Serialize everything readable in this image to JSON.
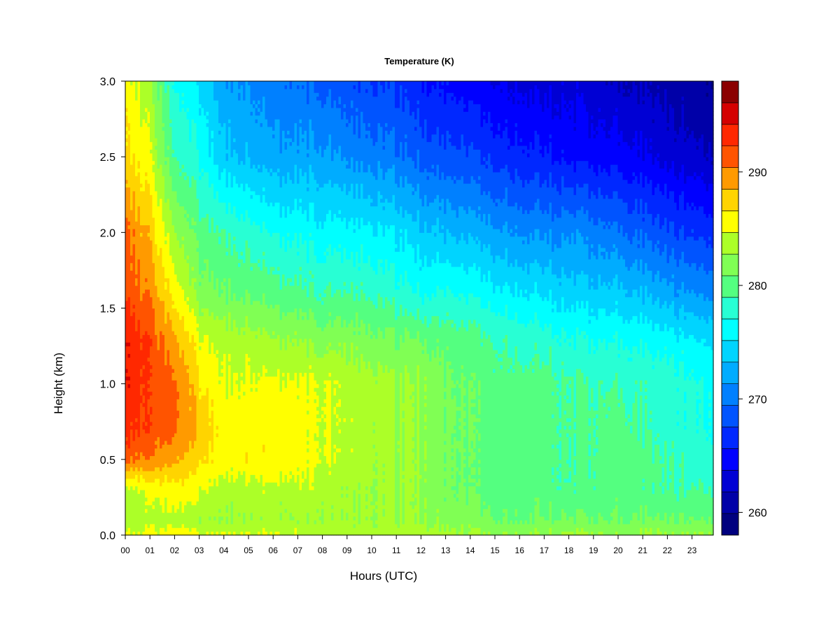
{
  "chart_data": {
    "type": "heatmap",
    "title": "Temperature (K)",
    "xlabel": "Hours (UTC)",
    "ylabel": "Height (km)",
    "x": {
      "range": [
        0,
        23.9
      ],
      "unit": "hour",
      "ticks": [
        0,
        1,
        2,
        3,
        4,
        5,
        6,
        7,
        8,
        9,
        10,
        11,
        12,
        13,
        14,
        15,
        16,
        17,
        18,
        19,
        20,
        21,
        22,
        23
      ],
      "tick_labels": [
        "00",
        "01",
        "02",
        "03",
        "04",
        "05",
        "06",
        "07",
        "08",
        "09",
        "10",
        "11",
        "12",
        "13",
        "14",
        "15",
        "16",
        "17",
        "18",
        "19",
        "20",
        "21",
        "22",
        "23"
      ]
    },
    "y": {
      "range": [
        0,
        3.0
      ],
      "unit": "km",
      "ticks": [
        0,
        0.5,
        1.0,
        1.5,
        2.0,
        2.5,
        3.0
      ],
      "tick_labels": [
        "0.0",
        "0.5",
        "1.0",
        "1.5",
        "2.0",
        "2.5",
        "3.0"
      ]
    },
    "colorbar": {
      "range": [
        258,
        298
      ],
      "levels": [
        258,
        260,
        262,
        264,
        266,
        268,
        270,
        272,
        274,
        276,
        278,
        280,
        282,
        284,
        286,
        288,
        290,
        292,
        294,
        296,
        298
      ],
      "colors": [
        "#00007f",
        "#0000a8",
        "#0000d4",
        "#0000ff",
        "#0028ff",
        "#0054ff",
        "#0080ff",
        "#00acff",
        "#00d4ff",
        "#00ffff",
        "#28ffd4",
        "#54ff80",
        "#80ff54",
        "#acff28",
        "#ffff00",
        "#ffd400",
        "#ff9a00",
        "#ff5400",
        "#ff2800",
        "#d40000",
        "#8b0000"
      ],
      "ticks": [
        260,
        270,
        280,
        290
      ],
      "tick_labels": [
        "260",
        "270",
        "280",
        "290"
      ]
    },
    "heights": [
      0,
      0.1,
      0.3,
      0.5,
      0.7,
      1.0,
      1.3,
      1.6,
      2.0,
      2.5,
      3.0
    ],
    "profiles": [
      {
        "hour": 0,
        "values": [
          285,
          283,
          284,
          291,
          293,
          294,
          294,
          292,
          291,
          287,
          286
        ]
      },
      {
        "hour": 1,
        "values": [
          285,
          284,
          285,
          290,
          292,
          292,
          292,
          290,
          288,
          285,
          283
        ]
      },
      {
        "hour": 2,
        "values": [
          286,
          284,
          286,
          289,
          291,
          291,
          289,
          286,
          283,
          279,
          277
        ]
      },
      {
        "hour": 3,
        "values": [
          285,
          283,
          285,
          287,
          288,
          287,
          285,
          282,
          280,
          277,
          275
        ]
      },
      {
        "hour": 4,
        "values": [
          285,
          283,
          284,
          286,
          286,
          285,
          284,
          281,
          279,
          274,
          272
        ]
      },
      {
        "hour": 6,
        "values": [
          285,
          283,
          284,
          286,
          286,
          285,
          283,
          280,
          277,
          272,
          270
        ]
      },
      {
        "hour": 8,
        "values": [
          284,
          283,
          284,
          285,
          285,
          285,
          282,
          279,
          276,
          272,
          269
        ]
      },
      {
        "hour": 9,
        "values": [
          284,
          283,
          283,
          284,
          284,
          284,
          282,
          279,
          276,
          271,
          268
        ]
      },
      {
        "hour": 11,
        "values": [
          284,
          283,
          283,
          283,
          283,
          283,
          281,
          278,
          275,
          270,
          267
        ]
      },
      {
        "hour": 12,
        "values": [
          284,
          283,
          283,
          283,
          283,
          283,
          281,
          277,
          274,
          269,
          266
        ]
      },
      {
        "hour": 13,
        "values": [
          283,
          282,
          281,
          281,
          281,
          281,
          280,
          277,
          273,
          268,
          265
        ]
      },
      {
        "hour": 15,
        "values": [
          283,
          281,
          280,
          280,
          280,
          280,
          279,
          276,
          272,
          267,
          264
        ]
      },
      {
        "hour": 17,
        "values": [
          283,
          281,
          280,
          280,
          280,
          280,
          278,
          275,
          271,
          266,
          263
        ]
      },
      {
        "hour": 18,
        "values": [
          283,
          281,
          279,
          279,
          279,
          279,
          277,
          274,
          271,
          265,
          263
        ]
      },
      {
        "hour": 20,
        "values": [
          283,
          281,
          280,
          280,
          280,
          279,
          277,
          274,
          270,
          265,
          262
        ]
      },
      {
        "hour": 22,
        "values": [
          283,
          281,
          279,
          279,
          278,
          278,
          276,
          272,
          268,
          263,
          261
        ]
      },
      {
        "hour": 23.9,
        "values": [
          283,
          281,
          279,
          278,
          277,
          277,
          275,
          271,
          267,
          262,
          260
        ]
      }
    ]
  }
}
